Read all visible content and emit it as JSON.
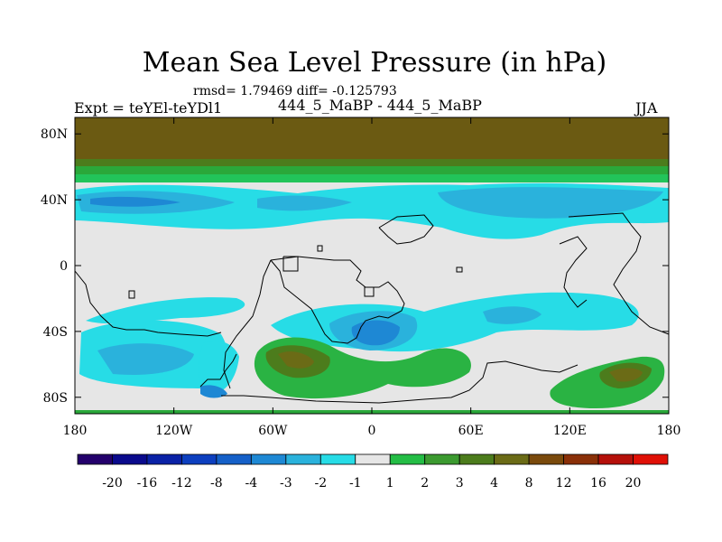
{
  "title": "Mean Sea Level Pressure (in hPa)",
  "stats": "rmsd= 1.79469 diff= -0.125793",
  "left_label": "Expt = teYEl-teYDl1",
  "center_label": "444_5_MaBP - 444_5_MaBP",
  "right_label": "JJA",
  "y_ticks": [
    {
      "label": "80N",
      "lat": 80
    },
    {
      "label": "40N",
      "lat": 40
    },
    {
      "label": "0",
      "lat": 0
    },
    {
      "label": "40S",
      "lat": -40
    },
    {
      "label": "80S",
      "lat": -80
    }
  ],
  "x_ticks": [
    {
      "label": "180",
      "lon": -180
    },
    {
      "label": "120W",
      "lon": -120
    },
    {
      "label": "60W",
      "lon": -60
    },
    {
      "label": "0",
      "lon": 0
    },
    {
      "label": "60E",
      "lon": 60
    },
    {
      "label": "120E",
      "lon": 120
    },
    {
      "label": "180",
      "lon": 180
    }
  ],
  "colorbar": {
    "colors": [
      "#24006c",
      "#0a0a8c",
      "#0a22a6",
      "#0d3fbf",
      "#1560c8",
      "#1e88d4",
      "#2ab2dc",
      "#27dce6",
      "#e6e6e6",
      "#24bd45",
      "#3b9a30",
      "#4c7c1c",
      "#6b6b16",
      "#7a4a0c",
      "#8a3008",
      "#b5100a",
      "#e01006"
    ],
    "labels": [
      "-20",
      "-16",
      "-12",
      "-8",
      "-4",
      "-3",
      "-2",
      "-1",
      "1",
      "2",
      "3",
      "4",
      "8",
      "12",
      "16",
      "20"
    ]
  },
  "chart_data": {
    "type": "contour-map",
    "title": "Mean Sea Level Pressure (in hPa)",
    "units": "hPa",
    "rmsd": 1.79469,
    "diff": -0.125793,
    "projection": "cylindrical equidistant",
    "lon_range": [
      -180,
      180
    ],
    "lat_range": [
      -90,
      90
    ],
    "levels": [
      -20,
      -16,
      -12,
      -8,
      -4,
      -3,
      -2,
      -1,
      1,
      2,
      3,
      4,
      8,
      12,
      16,
      20
    ],
    "colors": {
      "arctic": "#6b5a12",
      "band_high_lat": "#4c7c1c",
      "band_mid": "#2aa83a",
      "band_light": "#27dce6",
      "neutral": "#e6e6e6",
      "cyan": "#27dce6",
      "blue_mid": "#2ab2dc",
      "blue_dark": "#1e88d4",
      "blue_deep": "#1560c8",
      "green": "#2ab343",
      "green_dark": "#4c7c1c",
      "olive": "#6b6b16",
      "coast": "#000000"
    },
    "features": [
      {
        "name": "Arctic positive anomaly",
        "range": ">8 hPa",
        "lat": [
          55,
          90
        ]
      },
      {
        "name": "Northern mid-latitude negative band",
        "range": "-1 to -3 hPa",
        "lat": [
          25,
          50
        ]
      },
      {
        "name": "South Atlantic positive anomaly",
        "range": "2 to 4 hPa",
        "lon": [
          -60,
          40
        ],
        "lat": [
          -75,
          -45
        ]
      },
      {
        "name": "Southern Africa negative anomaly",
        "range": "-2 to -3 hPa",
        "lon": [
          -30,
          60
        ],
        "lat": [
          -60,
          -35
        ]
      },
      {
        "name": "Australian-Pacific positive anomaly",
        "range": "2 to 3 hPa",
        "lon": [
          115,
          175
        ],
        "lat": [
          -90,
          -60
        ]
      }
    ]
  }
}
